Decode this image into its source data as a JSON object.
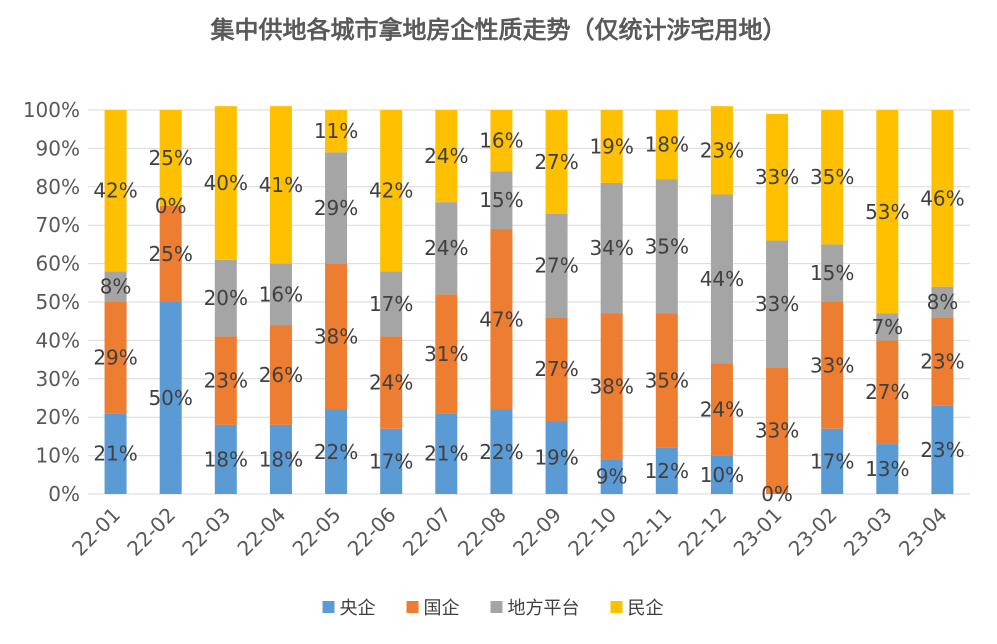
{
  "chart_data": {
    "type": "bar",
    "stacked": true,
    "percent": true,
    "title": "集中供地各城市拿地房企性质走势（仅统计涉宅用地）",
    "categories": [
      "22-01",
      "22-02",
      "22-03",
      "22-04",
      "22-05",
      "22-06",
      "22-07",
      "22-08",
      "22-09",
      "22-10",
      "22-11",
      "22-12",
      "23-01",
      "23-02",
      "23-03",
      "23-04"
    ],
    "series": [
      {
        "name": "央企",
        "color": "#5B9BD5",
        "values": [
          21,
          50,
          18,
          18,
          22,
          17,
          21,
          22,
          19,
          9,
          12,
          10,
          0,
          17,
          13,
          23
        ]
      },
      {
        "name": "国企",
        "color": "#ED7D31",
        "values": [
          29,
          25,
          23,
          26,
          38,
          24,
          31,
          47,
          27,
          38,
          35,
          24,
          33,
          33,
          27,
          23
        ]
      },
      {
        "name": "地方平台",
        "color": "#A5A5A5",
        "values": [
          8,
          0,
          20,
          16,
          29,
          17,
          24,
          15,
          27,
          34,
          35,
          44,
          33,
          15,
          7,
          8
        ]
      },
      {
        "name": "民企",
        "color": "#FFC000",
        "values": [
          42,
          25,
          40,
          41,
          11,
          42,
          24,
          16,
          27,
          19,
          18,
          23,
          33,
          35,
          53,
          46
        ]
      }
    ],
    "yticks": [
      "0%",
      "10%",
      "20%",
      "30%",
      "40%",
      "50%",
      "60%",
      "70%",
      "80%",
      "90%",
      "100%"
    ],
    "ylim": [
      0,
      100
    ],
    "grid": true,
    "legend_position": "bottom"
  }
}
